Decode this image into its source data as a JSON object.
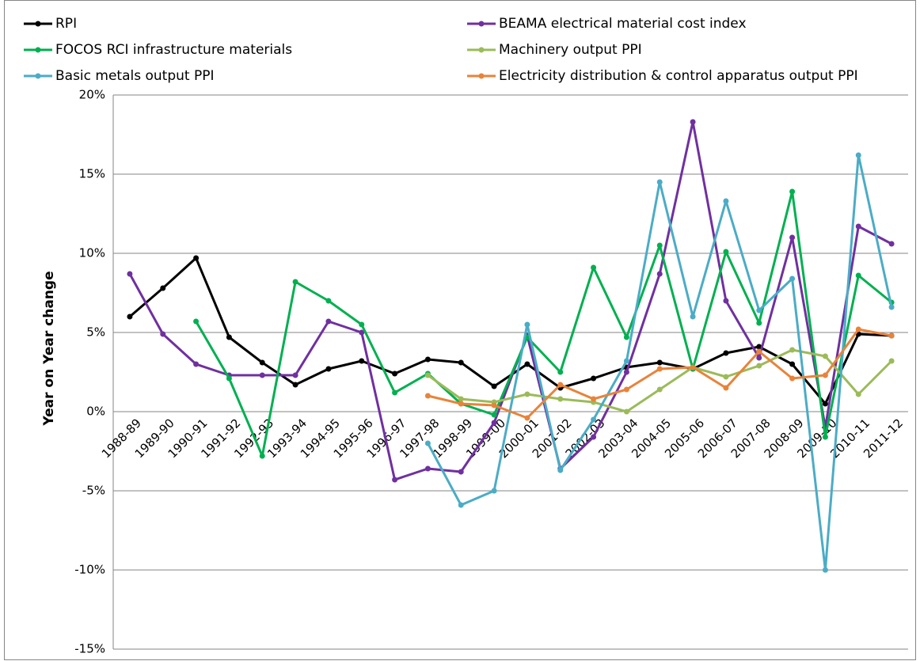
{
  "chart_data": {
    "type": "line",
    "y_label": "Year on Year change",
    "categories": [
      "1988-89",
      "1989-90",
      "1990-91",
      "1991-92",
      "1992-93",
      "1993-94",
      "1994-95",
      "1995-96",
      "1996-97",
      "1997-98",
      "1998-99",
      "1999-00",
      "2000-01",
      "2001-02",
      "2002-03",
      "2003-04",
      "2004-05",
      "2005-06",
      "2006-07",
      "2007-08",
      "2008-09",
      "2009-10",
      "2010-11",
      "2011-12"
    ],
    "series": [
      {
        "name": "RPI",
        "color": "#000000",
        "values": [
          6.0,
          7.8,
          9.7,
          4.7,
          3.1,
          1.7,
          2.7,
          3.2,
          2.4,
          3.3,
          3.1,
          1.6,
          3.0,
          1.5,
          2.1,
          2.8,
          3.1,
          2.7,
          3.7,
          4.1,
          3.0,
          0.5,
          4.9,
          4.8
        ]
      },
      {
        "name": "BEAMA electrical material cost index",
        "color": "#7030a0",
        "values": [
          8.7,
          4.9,
          3.0,
          2.3,
          2.3,
          2.3,
          5.7,
          5.0,
          -4.3,
          -3.6,
          -3.8,
          -0.7,
          4.8,
          -3.6,
          -1.6,
          2.5,
          8.7,
          18.3,
          7.0,
          3.4,
          11.0,
          -1.0,
          11.7,
          10.6
        ]
      },
      {
        "name": "FOCOS RCI infrastructure materials",
        "color": "#00b050",
        "values": [
          null,
          null,
          5.7,
          2.1,
          -2.8,
          8.2,
          7.0,
          5.5,
          1.2,
          2.4,
          0.5,
          -0.2,
          4.7,
          2.5,
          9.1,
          4.7,
          10.5,
          2.7,
          10.1,
          5.6,
          13.9,
          -1.6,
          8.6,
          6.9
        ]
      },
      {
        "name": "Machinery output PPI",
        "color": "#9bbb59",
        "values": [
          null,
          null,
          null,
          null,
          null,
          null,
          null,
          null,
          null,
          2.3,
          0.8,
          0.6,
          1.1,
          0.8,
          0.6,
          0.0,
          1.4,
          2.8,
          2.2,
          2.9,
          3.9,
          3.5,
          1.1,
          3.2
        ]
      },
      {
        "name": "Basic metals output PPI",
        "color": "#4bacc6",
        "values": [
          null,
          null,
          null,
          null,
          null,
          null,
          null,
          null,
          null,
          -2.0,
          -5.9,
          -5.0,
          5.5,
          -3.7,
          -0.5,
          3.2,
          14.5,
          6.0,
          13.3,
          6.4,
          8.4,
          -10.0,
          16.2,
          6.6
        ]
      },
      {
        "name": "Electricity distribution & control apparatus output PPI",
        "color": "#e8833a",
        "values": [
          null,
          null,
          null,
          null,
          null,
          null,
          null,
          null,
          null,
          1.0,
          0.5,
          0.4,
          -0.4,
          1.7,
          0.8,
          1.4,
          2.7,
          2.8,
          1.5,
          3.8,
          2.1,
          2.3,
          5.2,
          4.8
        ]
      }
    ],
    "ylim": [
      -15,
      20
    ],
    "yticks": [
      {
        "value": -15,
        "label": "-15%"
      },
      {
        "value": -10,
        "label": "-10%"
      },
      {
        "value": -5,
        "label": "-5%"
      },
      {
        "value": 0,
        "label": "0%"
      },
      {
        "value": 5,
        "label": "5%"
      },
      {
        "value": 10,
        "label": "10%"
      },
      {
        "value": 15,
        "label": "15%"
      },
      {
        "value": 20,
        "label": "20%"
      }
    ],
    "grid": true
  }
}
